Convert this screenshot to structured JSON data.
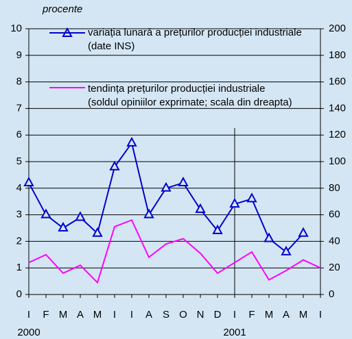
{
  "chart_data": {
    "type": "line",
    "y_axis_label": "procente",
    "categories": [
      "I",
      "F",
      "M",
      "A",
      "M",
      "I",
      "I",
      "A",
      "S",
      "O",
      "N",
      "D",
      "I",
      "F",
      "M",
      "A",
      "M",
      "I"
    ],
    "years": [
      "2000",
      null,
      null,
      null,
      null,
      null,
      null,
      null,
      null,
      null,
      null,
      null,
      "2001",
      null,
      null,
      null,
      null,
      null
    ],
    "series": [
      {
        "name": "variația lunară a prețurilor producției industriale (date INS)",
        "color": "#0000cc",
        "marker": "triangle",
        "values": [
          4.2,
          3.0,
          2.5,
          2.9,
          2.3,
          4.8,
          5.7,
          3.0,
          4.0,
          4.2,
          3.2,
          2.4,
          3.4,
          3.6,
          2.1,
          1.6,
          2.3,
          null
        ]
      },
      {
        "name": "tendința prețurilor producției industriale (soldul opiniilor exprimate; scala din dreapta)",
        "color": "#ff00ff",
        "axis": "y2",
        "values": [
          24,
          30,
          16,
          22,
          9,
          51,
          56,
          28,
          38,
          42,
          31,
          16,
          24,
          32,
          11,
          18,
          26,
          20
        ]
      }
    ],
    "ylim": [
      0,
      10
    ],
    "yticks": [
      0,
      1,
      2,
      3,
      4,
      5,
      6,
      7,
      8,
      9,
      10
    ],
    "y2lim": [
      0,
      200
    ],
    "y2ticks": [
      0,
      20,
      40,
      60,
      80,
      100,
      120,
      140,
      160,
      180,
      200
    ],
    "grid": true
  }
}
